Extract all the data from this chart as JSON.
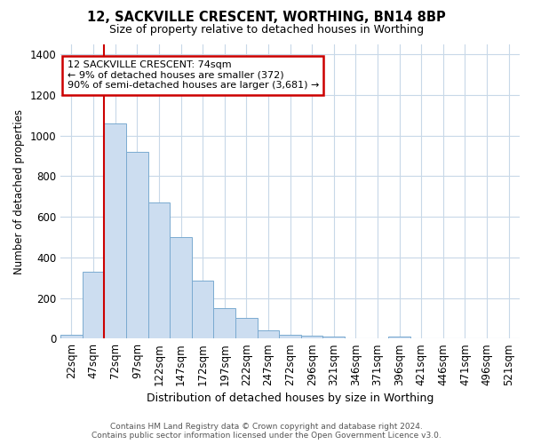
{
  "title": "12, SACKVILLE CRESCENT, WORTHING, BN14 8BP",
  "subtitle": "Size of property relative to detached houses in Worthing",
  "xlabel": "Distribution of detached houses by size in Worthing",
  "ylabel": "Number of detached properties",
  "categories": [
    "22sqm",
    "47sqm",
    "72sqm",
    "97sqm",
    "122sqm",
    "147sqm",
    "172sqm",
    "197sqm",
    "222sqm",
    "247sqm",
    "272sqm",
    "296sqm",
    "321sqm",
    "346sqm",
    "371sqm",
    "396sqm",
    "421sqm",
    "446sqm",
    "471sqm",
    "496sqm",
    "521sqm"
  ],
  "values": [
    20,
    330,
    1060,
    920,
    670,
    500,
    285,
    150,
    103,
    40,
    20,
    12,
    8,
    1,
    0,
    8,
    0,
    0,
    0,
    0,
    0
  ],
  "bar_color": "#ccddf0",
  "bar_edge_color": "#7aaad0",
  "vline_color": "#cc0000",
  "annotation_text": "12 SACKVILLE CRESCENT: 74sqm\n← 9% of detached houses are smaller (372)\n90% of semi-detached houses are larger (3,681) →",
  "annotation_box_color": "#ffffff",
  "annotation_box_edge_color": "#cc0000",
  "ylim": [
    0,
    1450
  ],
  "yticks": [
    0,
    200,
    400,
    600,
    800,
    1000,
    1200,
    1400
  ],
  "footer_text": "Contains HM Land Registry data © Crown copyright and database right 2024.\nContains public sector information licensed under the Open Government Licence v3.0.",
  "background_color": "#ffffff",
  "grid_color": "#c8d8e8"
}
